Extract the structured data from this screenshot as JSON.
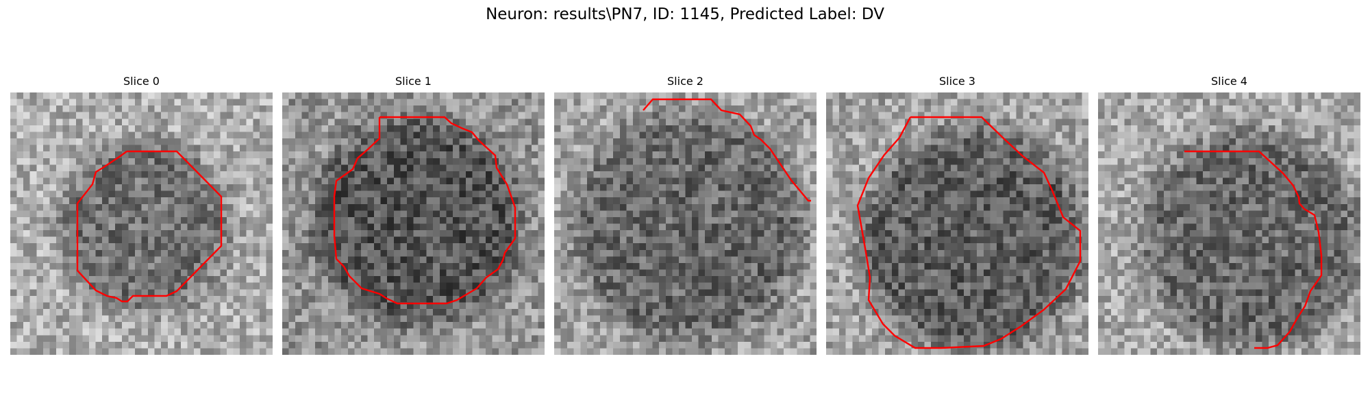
{
  "figure": {
    "title": "Neuron: results\\PN7, ID: 1145, Predicted Label: DV"
  },
  "panels": [
    {
      "title": "Slice 0"
    },
    {
      "title": "Slice 1"
    },
    {
      "title": "Slice 2"
    },
    {
      "title": "Slice 3"
    },
    {
      "title": "Slice 4"
    }
  ],
  "colors": {
    "contour": "#ff0000",
    "colormap": "gray"
  }
}
